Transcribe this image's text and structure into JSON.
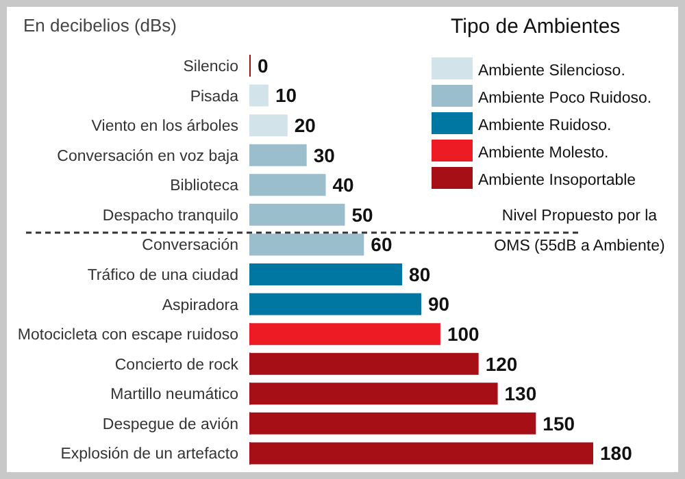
{
  "chart_data": {
    "type": "bar",
    "orientation": "horizontal",
    "stacked": true,
    "title": "En decibelios (dBs)",
    "legend_title": "Tipo de Ambientes",
    "legend": "top right",
    "data_labels": true,
    "categories": [
      "Silencio",
      "Pisada",
      "Viento en los árboles",
      "Conversación en voz baja",
      "Biblioteca",
      "Despacho tranquilo",
      "Conversación",
      "Tráfico de una ciudad",
      "Aspiradora",
      "Motocicleta con escape ruidoso",
      "Concierto de rock",
      "Martillo neumático",
      "Despegue de avión",
      "Explosión de un artefacto"
    ],
    "series": [
      {
        "name": "Ambiente Silencioso.",
        "color": "#d3e3ea",
        "values": [
          0,
          10,
          20,
          null,
          null,
          null,
          null,
          null,
          null,
          null,
          null,
          null,
          null,
          null
        ]
      },
      {
        "name": "Ambiente Poco Ruidoso.",
        "color": "#9bbecd",
        "values": [
          null,
          null,
          null,
          30,
          40,
          50,
          60,
          null,
          null,
          null,
          null,
          null,
          null,
          null
        ]
      },
      {
        "name": "Ambiente Ruidoso.",
        "color": "#0077a3",
        "values": [
          null,
          null,
          null,
          null,
          null,
          null,
          null,
          80,
          90,
          null,
          null,
          null,
          null,
          null
        ]
      },
      {
        "name": "Ambiente Molesto.",
        "color": "#ed1c24",
        "values": [
          null,
          null,
          null,
          null,
          null,
          null,
          null,
          null,
          null,
          100,
          null,
          null,
          null,
          null
        ]
      },
      {
        "name": "Ambiente Insoportable",
        "color": "#a50f15",
        "values": [
          null,
          null,
          null,
          null,
          null,
          null,
          null,
          null,
          null,
          null,
          120,
          130,
          150,
          180
        ]
      }
    ],
    "annotations": [
      "Nivel Propuesto por la OMS (55dB a Ambiente)"
    ]
  }
}
